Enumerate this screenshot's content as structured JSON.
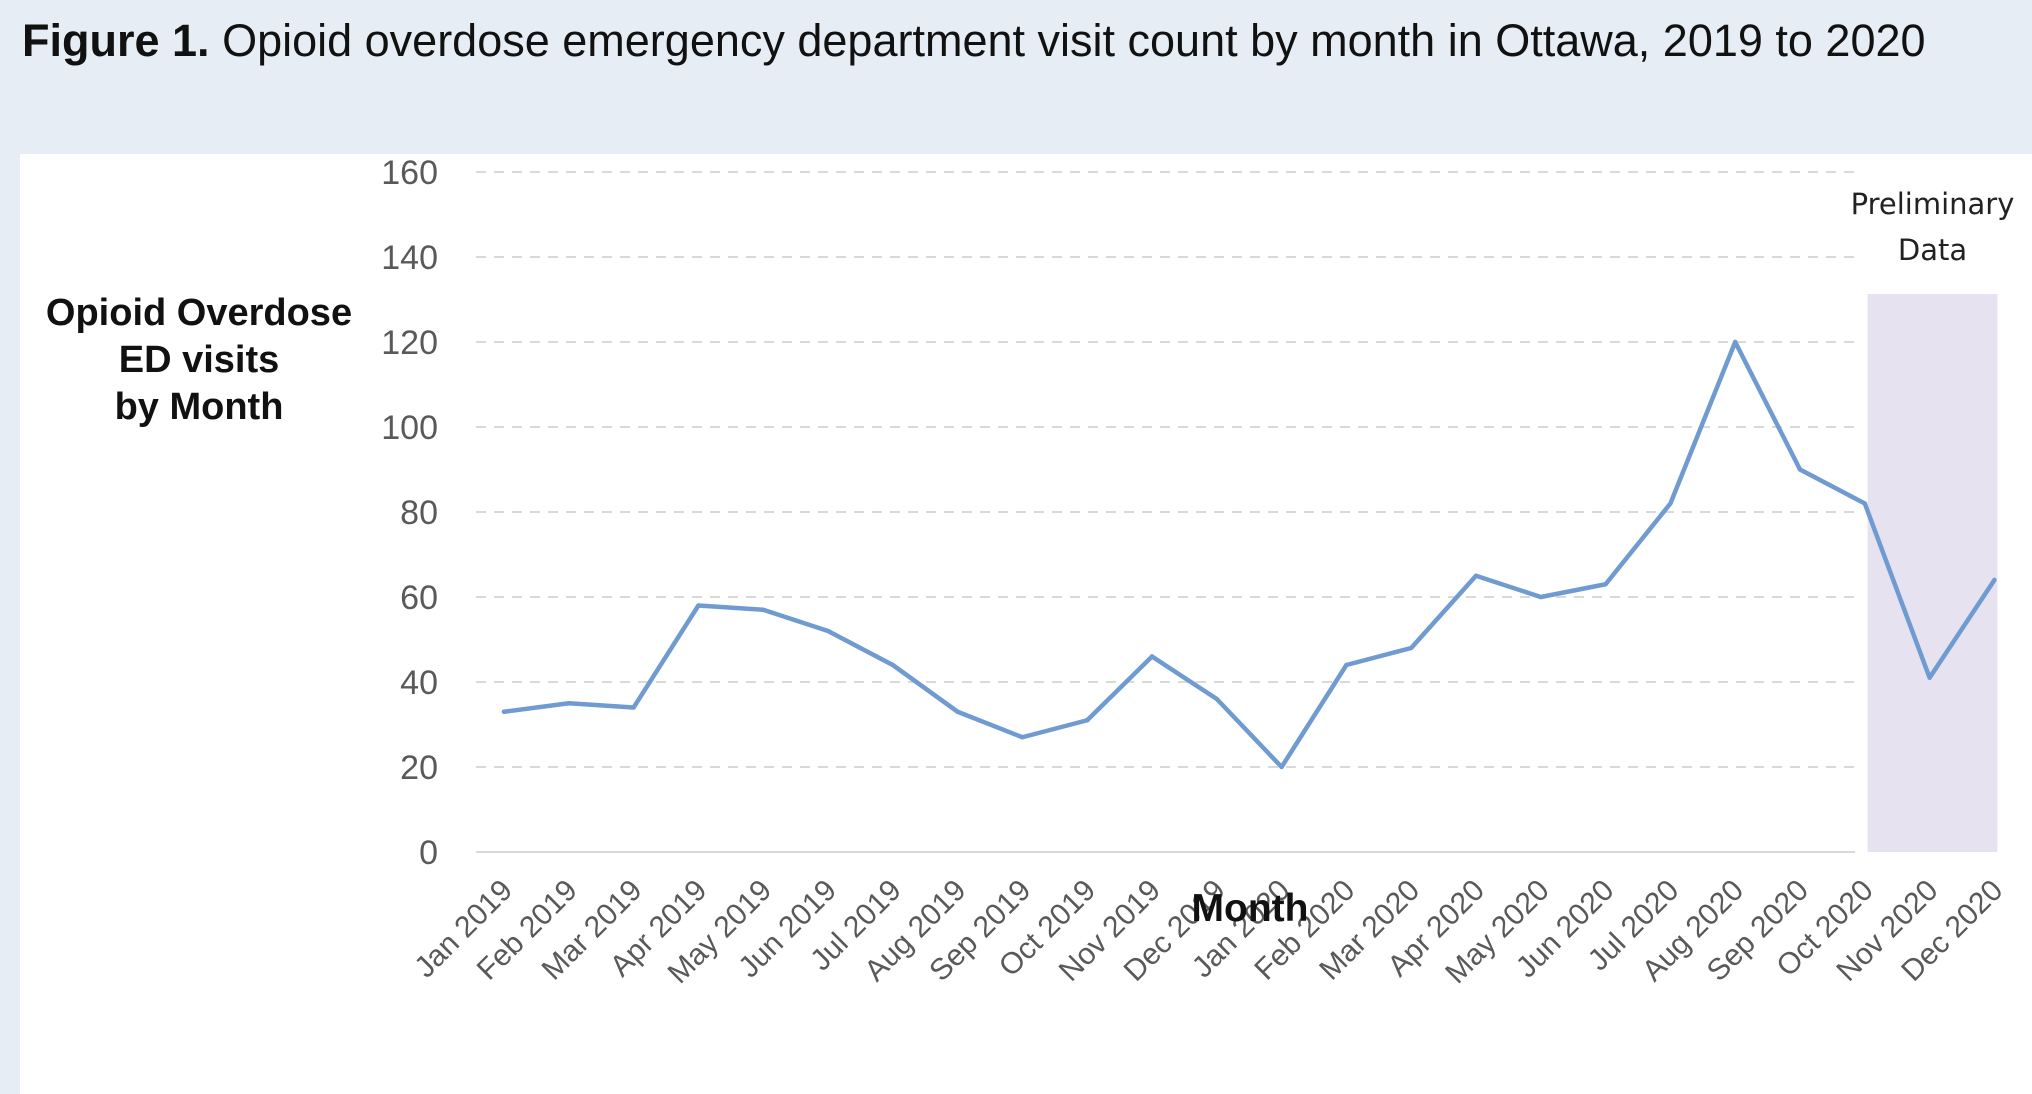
{
  "figure": {
    "label": "Figure 1.",
    "title": "Opioid overdose emergency department visit count by month in Ottawa, 2019 to 2020"
  },
  "chart_data": {
    "type": "line",
    "title": "Figure 1. Opioid overdose emergency department visit count by month in Ottawa, 2019 to 2020",
    "xlabel": "Month",
    "ylabel_lines": [
      "Opioid Overdose",
      "ED visits",
      "by Month"
    ],
    "ylim": [
      0,
      160
    ],
    "yticks": [
      0,
      20,
      40,
      60,
      80,
      100,
      120,
      140,
      160
    ],
    "grid": "horizontal dashed",
    "line_color": "#6f9bd1",
    "shade_color": "#e6e2f0",
    "categories": [
      "Jan 2019",
      "Feb 2019",
      "Mar 2019",
      "Apr 2019",
      "May 2019",
      "Jun 2019",
      "Jul 2019",
      "Aug 2019",
      "Sep 2019",
      "Oct 2019",
      "Nov 2019",
      "Dec 2019",
      "Jan 2020",
      "Feb 2020",
      "Mar 2020",
      "Apr 2020",
      "May 2020",
      "Jun 2020",
      "Jul 2020",
      "Aug 2020",
      "Sep 2020",
      "Oct 2020",
      "Nov 2020",
      "Dec 2020"
    ],
    "values": [
      33,
      35,
      34,
      58,
      57,
      52,
      44,
      33,
      27,
      31,
      46,
      36,
      20,
      44,
      48,
      65,
      60,
      63,
      82,
      120,
      90,
      82,
      41,
      64
    ],
    "shaded_region": {
      "categories": [
        "Nov 2020",
        "Dec 2020"
      ],
      "label_lines": [
        "Preliminary",
        "Data"
      ]
    }
  }
}
